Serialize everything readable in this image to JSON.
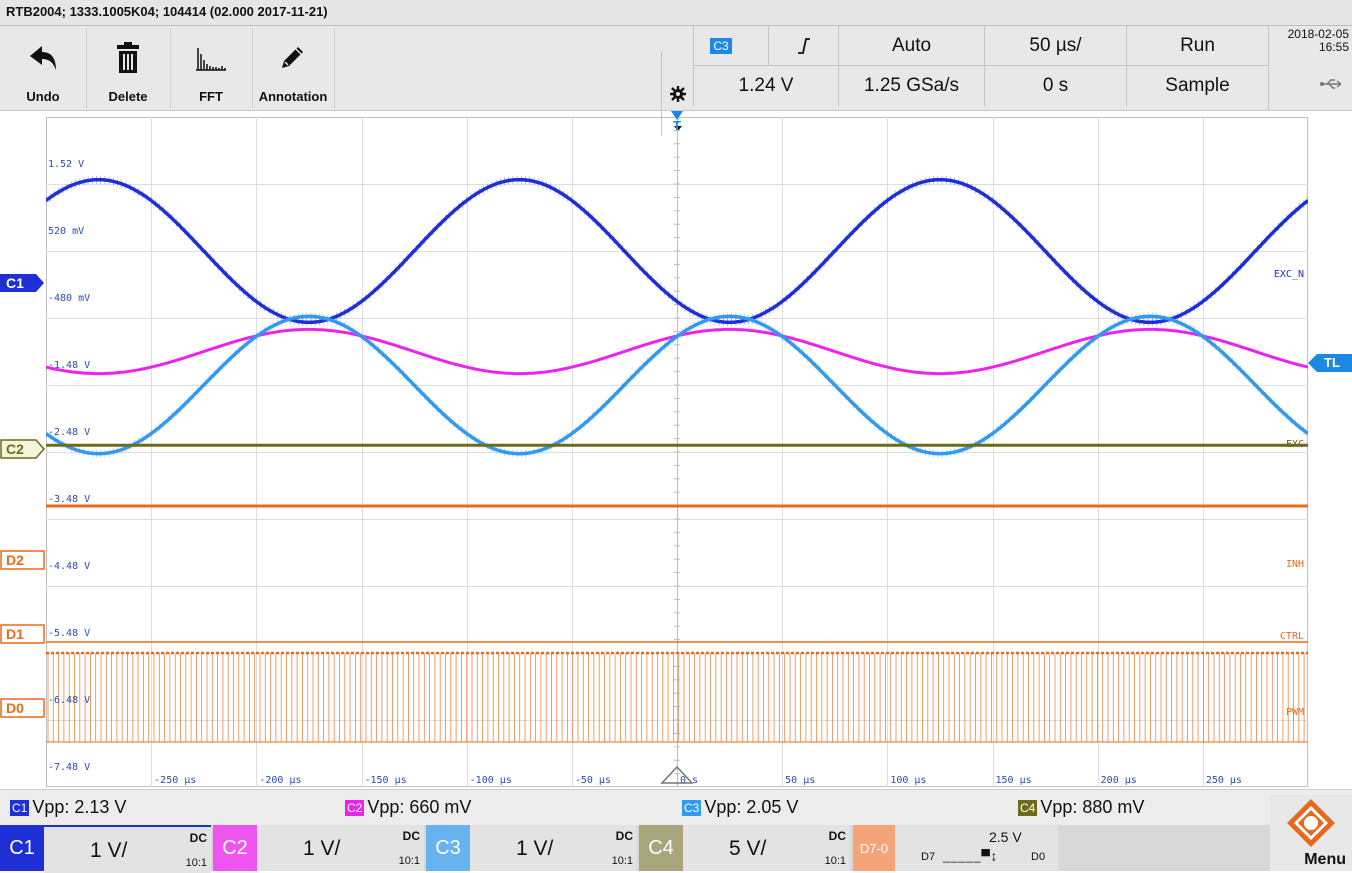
{
  "title_bar": {
    "text": "RTB2004; 1333.1005K04; 104414 (02.000 2017-11-21)"
  },
  "toolbar": {
    "undo_label": "Undo",
    "delete_label": "Delete",
    "fft_label": "FFT",
    "annotation_label": "Annotation"
  },
  "params": {
    "trigger_source": "C3",
    "trigger_level": "1.24 V",
    "trigger_mode": "Auto",
    "sample_rate": "1.25 GSa/s",
    "time_scale": "50 µs/",
    "time_offset": "0 s",
    "run_state": "Run",
    "acq_mode": "Sample"
  },
  "status": {
    "date": "2018-02-05",
    "time": "16:55"
  },
  "markers": {
    "trigger": "T",
    "trigger_level": "TL",
    "c1": "C1",
    "c24": "C2",
    "d2": "D2",
    "d1": "D1",
    "d0": "D0"
  },
  "chart_data": {
    "type": "line",
    "grid": true,
    "xlim": [
      -300,
      300
    ],
    "x_unit": "µs",
    "x_ticks": [
      "-250 µs",
      "-200 µs",
      "-150 µs",
      "-100 µs",
      "-50 µs",
      "0 s",
      "50 µs",
      "100 µs",
      "150 µs",
      "200 µs",
      "250 µs"
    ],
    "y_ticks": [
      "1.52 V",
      "520 mV",
      "-480 mV",
      "-1.48 V",
      "-2.48 V",
      "-3.48 V",
      "-4.48 V",
      "-5.48 V",
      "-6.48 V",
      "-7.48 V"
    ],
    "series": [
      {
        "name": "EXC_N",
        "channel": "C1",
        "color": "#1f2fd6",
        "kind": "sine",
        "amplitude_v": 1.065,
        "period_us": 200,
        "phase_deg": 180
      },
      {
        "name": "",
        "channel": "C2",
        "color": "#ee22ee",
        "kind": "sine",
        "amplitude_v": 0.33,
        "period_us": 200,
        "phase_deg": 0
      },
      {
        "name": "",
        "channel": "C3",
        "color": "#3399ee",
        "kind": "sine",
        "amplitude_v": 1.025,
        "period_us": 200,
        "phase_deg": 0
      },
      {
        "name": "EXC",
        "channel": "C4",
        "color": "#6b6b1a",
        "kind": "flat",
        "amplitude_v": 0.44
      },
      {
        "name": "INH",
        "channel": "D2",
        "color": "#ec6a1a",
        "kind": "digital",
        "state": "low"
      },
      {
        "name": "CTRL",
        "channel": "D1",
        "color": "#ec6a1a",
        "kind": "digital",
        "state": "low"
      },
      {
        "name": "PWM",
        "channel": "D0",
        "color": "#ec6a1a",
        "kind": "digital",
        "state": "toggling"
      }
    ]
  },
  "measurements": [
    {
      "chip": "C1",
      "color": "#1f2fd6",
      "label": "Vpp: 2.13 V"
    },
    {
      "chip": "C2",
      "color": "#ee22ee",
      "label": "Vpp: 660 mV"
    },
    {
      "chip": "C3",
      "color": "#3399ee",
      "label": "Vpp: 2.05 V"
    },
    {
      "chip": "C4",
      "color": "#6b6b1a",
      "label": "Vpp: 880 mV"
    }
  ],
  "channels": [
    {
      "tag": "C1",
      "color": "#1f2fd6",
      "scale": "1 V/",
      "coupling": "DC",
      "probe": "10:1"
    },
    {
      "tag": "C2",
      "color": "#ee55ee",
      "scale": "1 V/",
      "coupling": "DC",
      "probe": "10:1"
    },
    {
      "tag": "C3",
      "color": "#66b3f0",
      "scale": "1 V/",
      "coupling": "DC",
      "probe": "10:1"
    },
    {
      "tag": "C4",
      "color": "#a6a67a",
      "scale": "5 V/",
      "coupling": "DC",
      "probe": "10:1"
    }
  ],
  "digital": {
    "tag": "D7-0",
    "threshold": "2.5 V",
    "left": "D7",
    "right": "D0"
  },
  "menu_label": "Menu"
}
